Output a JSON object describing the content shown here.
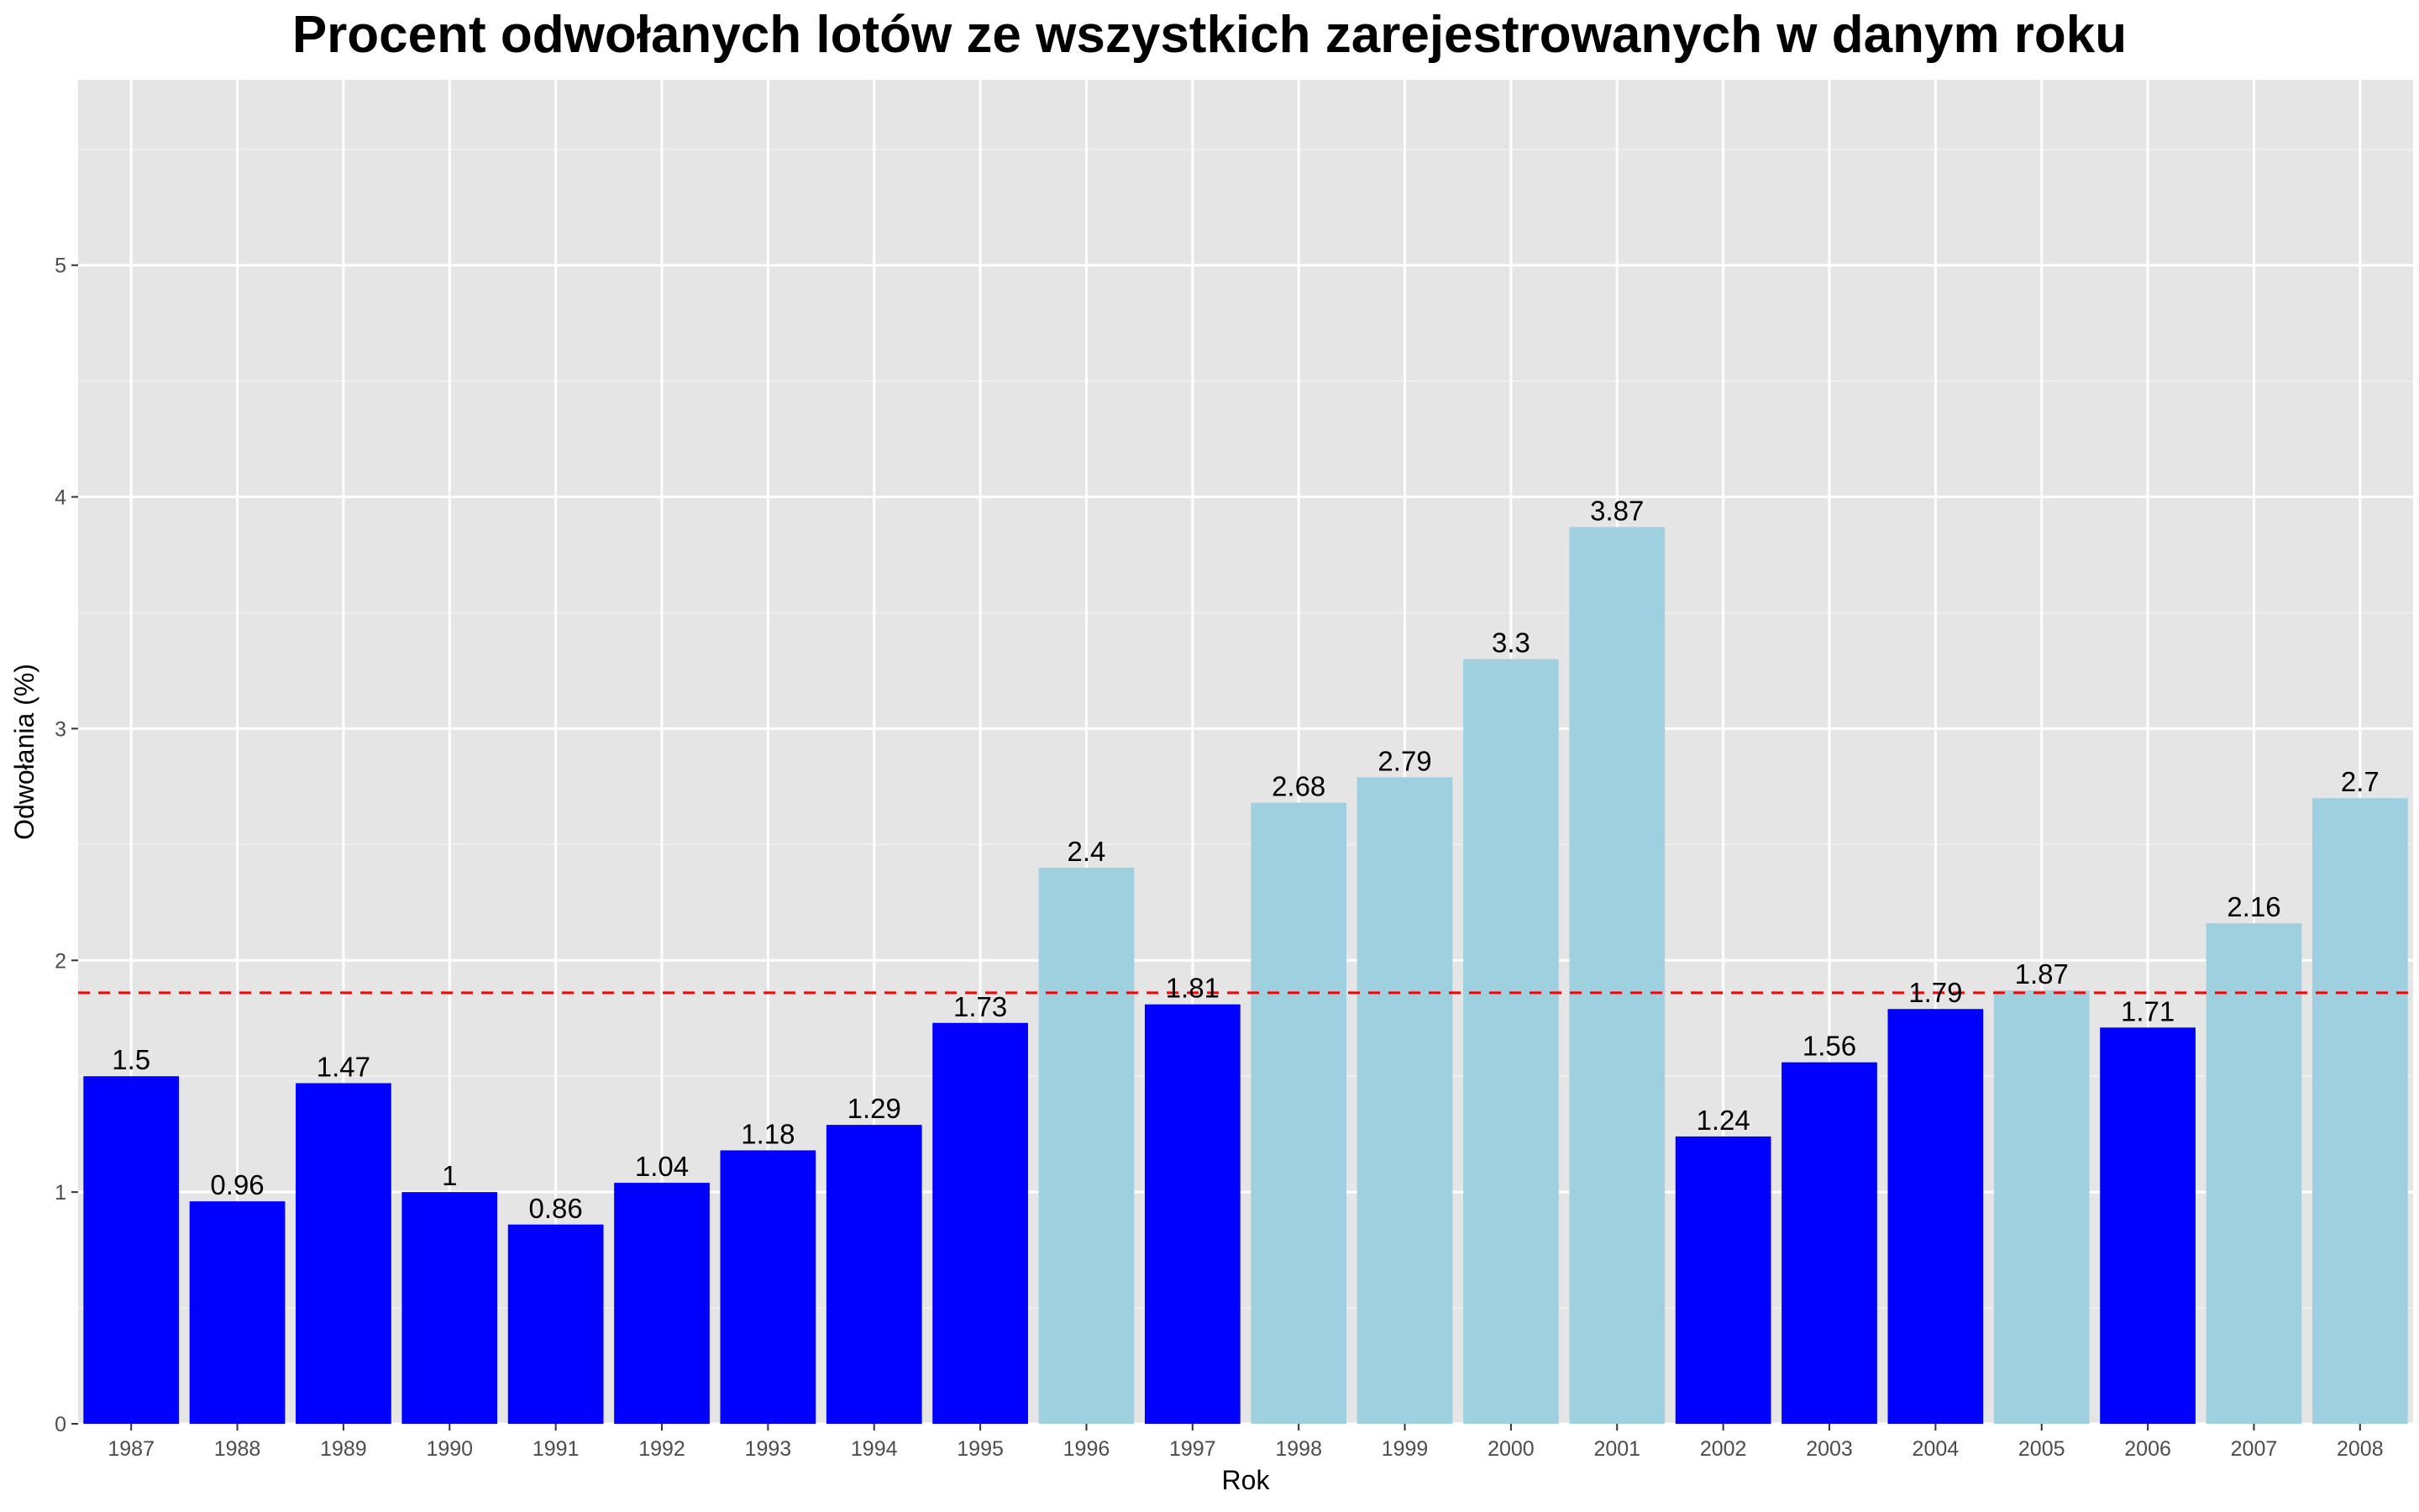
{
  "chart_data": {
    "type": "bar",
    "title": "Procent odwołanych lotów ze wszystkich zarejestrowanych w danym roku",
    "xlabel": "Rok",
    "ylabel": "Odwołania (%)",
    "categories": [
      "1987",
      "1988",
      "1989",
      "1990",
      "1991",
      "1992",
      "1993",
      "1994",
      "1995",
      "1996",
      "1997",
      "1998",
      "1999",
      "2000",
      "2001",
      "2002",
      "2003",
      "2004",
      "2005",
      "2006",
      "2007",
      "2008"
    ],
    "values": [
      1.5,
      0.96,
      1.47,
      1,
      0.86,
      1.04,
      1.18,
      1.29,
      1.73,
      2.4,
      1.81,
      2.68,
      2.79,
      3.3,
      3.87,
      1.24,
      1.56,
      1.79,
      1.87,
      1.71,
      2.16,
      2.7
    ],
    "data_labels": [
      "1.5",
      "0.96",
      "1.47",
      "1",
      "0.86",
      "1.04",
      "1.18",
      "1.29",
      "1.73",
      "2.4",
      "1.81",
      "2.68",
      "2.79",
      "3.3",
      "3.87",
      "1.24",
      "1.56",
      "1.79",
      "1.87",
      "1.71",
      "2.16",
      "2.7"
    ],
    "ylim": [
      0,
      5.8
    ],
    "yticks": [
      0,
      1,
      2,
      3,
      4,
      5
    ],
    "ytick_labels": [
      "0",
      "1",
      "2",
      "3",
      "4",
      "5"
    ],
    "grid": true,
    "reference_line": {
      "value": 1.86,
      "style": "dashed"
    },
    "colors": {
      "below_reference": "#0000ff",
      "above_reference": "#9fd0e0",
      "reference_line": "#ff0000",
      "panel_background": "#e5e5e5",
      "grid_major": "#ffffff",
      "grid_minor": "#f2f2f2"
    },
    "legend": "none"
  }
}
